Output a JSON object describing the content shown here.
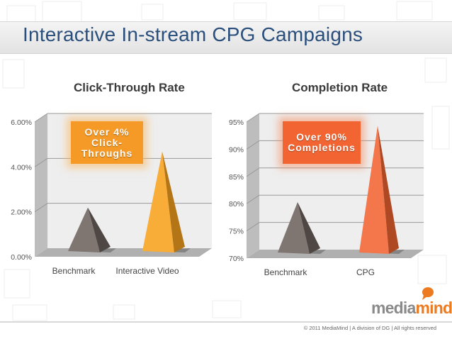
{
  "title": "Interactive In-stream CPG Campaigns",
  "colors": {
    "title": "#2a4f7c",
    "benchmark_pyramid": "#6e625e",
    "interactive_pyramid": "#f8a21e",
    "cpg_pyramid": "#f26532",
    "callout_orange": "#f59a27",
    "callout_red": "#f26532"
  },
  "chart_data": [
    {
      "type": "bar",
      "title": "Click-Through Rate",
      "categories": [
        "Benchmark",
        "Interactive Video"
      ],
      "values": [
        2.0,
        4.5
      ],
      "yticks": [
        "0.00%",
        "2.00%",
        "4.00%",
        "6.00%"
      ],
      "ylim": [
        0,
        6
      ],
      "grid": true,
      "callout": "Over 4% Click-Throughs"
    },
    {
      "type": "bar",
      "title": "Completion Rate",
      "categories": [
        "Benchmark",
        "CPG"
      ],
      "values": [
        79.5,
        93.5
      ],
      "yticks": [
        "70%",
        "75%",
        "80%",
        "85%",
        "90%",
        "95%"
      ],
      "ylim": [
        70,
        95
      ],
      "grid": true,
      "callout": "Over 90% Completions"
    }
  ],
  "logo": {
    "part1": "media",
    "part2": "mind",
    "tm": "™"
  },
  "footer": "© 2011 MediaMind | A division of DG | All rights reserved"
}
